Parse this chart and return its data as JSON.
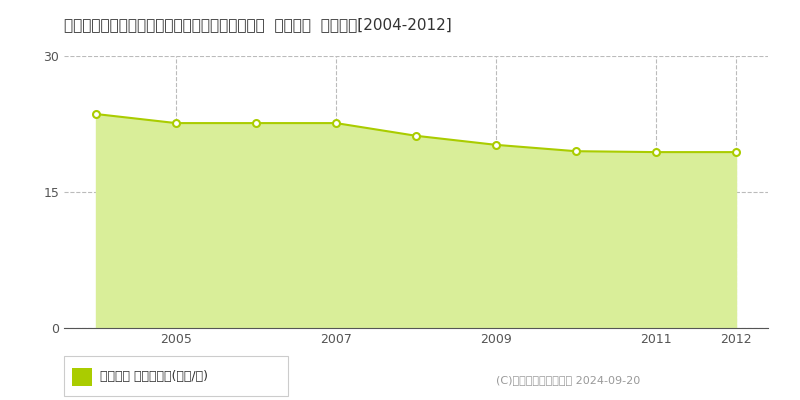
{
  "title": "愛知県知多郡南知多町大字片名字新師崎１０番５  公示地価  地価推移[2004-2012]",
  "years": [
    2004,
    2005,
    2006,
    2007,
    2008,
    2009,
    2010,
    2011,
    2012
  ],
  "values": [
    23.6,
    22.6,
    22.6,
    22.6,
    21.2,
    20.2,
    19.5,
    19.4,
    19.4
  ],
  "xlim": [
    2003.6,
    2012.4
  ],
  "ylim": [
    0,
    30
  ],
  "yticks": [
    0,
    15,
    30
  ],
  "xticks": [
    2005,
    2007,
    2009,
    2011,
    2012
  ],
  "line_color": "#aacc00",
  "fill_color": "#d9ee99",
  "marker_color": "#ffffff",
  "marker_edge_color": "#aacc00",
  "grid_color": "#bbbbbb",
  "background_color": "#ffffff",
  "legend_label": "公示地価 平均坪単価(万円/坪)",
  "copyright_text": "(C)土地価格ドットコム 2024-09-20",
  "title_fontsize": 11,
  "axis_fontsize": 9,
  "legend_fontsize": 9,
  "copyright_fontsize": 8
}
